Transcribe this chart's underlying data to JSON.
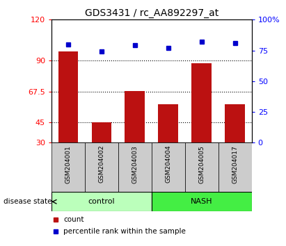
{
  "title": "GDS3431 / rc_AA892297_at",
  "samples": [
    "GSM204001",
    "GSM204002",
    "GSM204003",
    "GSM204004",
    "GSM204005",
    "GSM204017"
  ],
  "counts": [
    97,
    45,
    68,
    58,
    88,
    58
  ],
  "percentiles": [
    80,
    74,
    79,
    77,
    82,
    81
  ],
  "groups": [
    "control",
    "control",
    "control",
    "NASH",
    "NASH",
    "NASH"
  ],
  "ylim_left": [
    30,
    120
  ],
  "ylim_right": [
    0,
    100
  ],
  "yticks_left": [
    30,
    45,
    67.5,
    90,
    120
  ],
  "yticks_right": [
    0,
    25,
    50,
    75,
    100
  ],
  "ytick_labels_left": [
    "30",
    "45",
    "67.5",
    "90",
    "120"
  ],
  "ytick_labels_right": [
    "0",
    "25",
    "50",
    "75",
    "100%"
  ],
  "hlines": [
    45,
    67.5,
    90
  ],
  "bar_color": "#BB1111",
  "dot_color": "#0000CC",
  "control_color": "#BBFFBB",
  "nash_color": "#44EE44",
  "tick_area_color": "#CCCCCC",
  "legend_count": "count",
  "legend_pct": "percentile rank within the sample",
  "disease_state_label": "disease state",
  "control_label": "control",
  "nash_label": "NASH"
}
